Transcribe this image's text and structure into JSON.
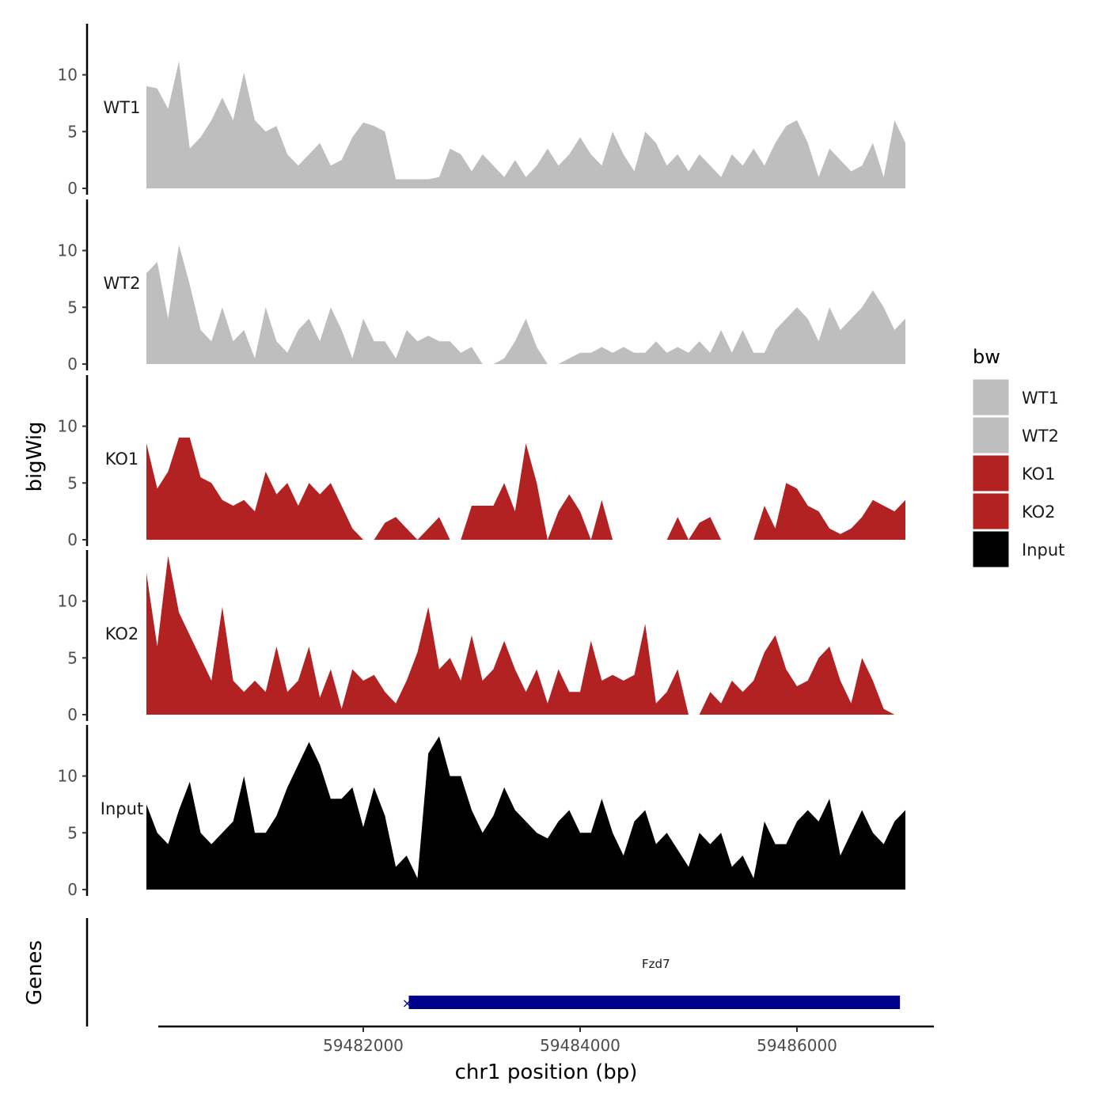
{
  "chart_data": {
    "type": "area",
    "ylabel": "bigWig",
    "xlabel": "chr1 position (bp)",
    "xlim": [
      59480000,
      59487200
    ],
    "ylim": [
      0,
      14.5
    ],
    "y_ticks": [
      "0",
      "5",
      "10"
    ],
    "x_ticks": [
      59482000,
      59484000,
      59486000
    ],
    "x_tick_labels": [
      "59482000",
      "59484000",
      "59486000"
    ],
    "tracks": [
      {
        "name": "WT1",
        "label": "WT1",
        "color": "#BEBEBE",
        "x": [
          59480000,
          59480100,
          59480200,
          59480300,
          59480400,
          59480500,
          59480600,
          59480700,
          59480800,
          59480900,
          59481000,
          59481100,
          59481200,
          59481300,
          59481400,
          59481500,
          59481600,
          59481700,
          59481800,
          59481900,
          59482000,
          59482100,
          59482200,
          59482300,
          59482400,
          59482500,
          59482600,
          59482700,
          59482800,
          59482900,
          59483000,
          59483100,
          59483200,
          59483300,
          59483400,
          59483500,
          59483600,
          59483700,
          59483800,
          59483900,
          59484000,
          59484100,
          59484200,
          59484300,
          59484400,
          59484500,
          59484600,
          59484700,
          59484800,
          59484900,
          59485000,
          59485100,
          59485200,
          59485300,
          59485400,
          59485500,
          59485600,
          59485700,
          59485800,
          59485900,
          59486000,
          59486100,
          59486200,
          59486300,
          59486400,
          59486500,
          59486600,
          59486700,
          59486800,
          59486900,
          59487000
        ],
        "y": [
          9,
          8.8,
          7,
          11.2,
          3.5,
          4.5,
          6,
          8,
          6,
          10.2,
          6,
          5,
          5.5,
          3,
          2,
          3,
          4,
          2,
          2.5,
          4.5,
          5.8,
          5.5,
          5,
          0.8,
          0.8,
          0.8,
          0.8,
          1,
          3.5,
          3,
          1.5,
          3,
          2,
          1,
          2.5,
          1,
          2,
          3.5,
          2,
          3,
          4.5,
          3,
          2,
          5,
          3,
          1.5,
          5,
          4,
          2,
          3,
          1.5,
          3,
          2,
          1,
          3,
          2,
          3.5,
          2,
          4,
          5.5,
          6,
          4,
          1,
          3.5,
          2.5,
          1.5,
          2,
          4,
          1,
          6,
          4
        ]
      },
      {
        "name": "WT2",
        "label": "WT2",
        "color": "#BEBEBE",
        "x": [
          59480000,
          59480100,
          59480200,
          59480300,
          59480400,
          59480500,
          59480600,
          59480700,
          59480800,
          59480900,
          59481000,
          59481100,
          59481200,
          59481300,
          59481400,
          59481500,
          59481600,
          59481700,
          59481800,
          59481900,
          59482000,
          59482100,
          59482200,
          59482300,
          59482400,
          59482500,
          59482600,
          59482700,
          59482800,
          59482900,
          59483000,
          59483100,
          59483200,
          59483300,
          59483400,
          59483500,
          59483600,
          59483700,
          59483800,
          59483900,
          59484000,
          59484100,
          59484200,
          59484300,
          59484400,
          59484500,
          59484600,
          59484700,
          59484800,
          59484900,
          59485000,
          59485100,
          59485200,
          59485300,
          59485400,
          59485500,
          59485600,
          59485700,
          59485800,
          59485900,
          59486000,
          59486100,
          59486200,
          59486300,
          59486400,
          59486500,
          59486600,
          59486700,
          59486800,
          59486900,
          59487000
        ],
        "y": [
          8,
          9,
          4,
          10.5,
          7,
          3,
          2,
          5,
          2,
          3,
          0.5,
          5,
          2,
          1,
          3,
          4,
          2,
          5,
          3,
          0.5,
          4,
          2,
          2,
          0.5,
          3,
          2,
          2.5,
          2,
          2,
          1,
          1.5,
          0,
          0,
          0.5,
          2,
          4,
          1.5,
          0,
          0,
          0.5,
          1,
          1,
          1.5,
          1,
          1.5,
          1,
          1,
          2,
          1,
          1.5,
          1,
          2,
          1,
          3,
          1,
          3,
          1,
          1,
          3,
          4,
          5,
          4,
          2,
          5,
          3,
          4,
          5,
          6.5,
          5,
          3,
          4
        ]
      },
      {
        "name": "KO1",
        "label": "KO1",
        "color": "#B22222",
        "x": [
          59480000,
          59480100,
          59480200,
          59480300,
          59480400,
          59480500,
          59480600,
          59480700,
          59480800,
          59480900,
          59481000,
          59481100,
          59481200,
          59481300,
          59481400,
          59481500,
          59481600,
          59481700,
          59481800,
          59481900,
          59482000,
          59482100,
          59482200,
          59482300,
          59482400,
          59482500,
          59482600,
          59482700,
          59482800,
          59482900,
          59483000,
          59483100,
          59483200,
          59483300,
          59483400,
          59483500,
          59483600,
          59483700,
          59483800,
          59483900,
          59484000,
          59484100,
          59484200,
          59484300,
          59484400,
          59484500,
          59484600,
          59484700,
          59484800,
          59484900,
          59485000,
          59485100,
          59485200,
          59485300,
          59485400,
          59485500,
          59485600,
          59485700,
          59485800,
          59485900,
          59486000,
          59486100,
          59486200,
          59486300,
          59486400,
          59486500,
          59486600,
          59486700,
          59486800,
          59486900,
          59487000
        ],
        "y": [
          8.5,
          4.5,
          6,
          9,
          9,
          5.5,
          5,
          3.5,
          3,
          3.5,
          2.5,
          6,
          4,
          5,
          3,
          5,
          4,
          5,
          3,
          1,
          0,
          0,
          1.5,
          2,
          1,
          0,
          1,
          2,
          0,
          0,
          3,
          3,
          3,
          5,
          2.5,
          8.5,
          5,
          0,
          2.5,
          4,
          2.5,
          0,
          3.5,
          0,
          0,
          0,
          0,
          0,
          0,
          2,
          0,
          1.5,
          2,
          0,
          0,
          0,
          0,
          3,
          1,
          5,
          4.5,
          3,
          2.5,
          1,
          0.5,
          1,
          2,
          3.5,
          3,
          2.5,
          3.5
        ]
      },
      {
        "name": "KO2",
        "label": "KO2",
        "color": "#B22222",
        "x": [
          59480000,
          59480100,
          59480200,
          59480300,
          59480400,
          59480500,
          59480600,
          59480700,
          59480800,
          59480900,
          59481000,
          59481100,
          59481200,
          59481300,
          59481400,
          59481500,
          59481600,
          59481700,
          59481800,
          59481900,
          59482000,
          59482100,
          59482200,
          59482300,
          59482400,
          59482500,
          59482600,
          59482700,
          59482800,
          59482900,
          59483000,
          59483100,
          59483200,
          59483300,
          59483400,
          59483500,
          59483600,
          59483700,
          59483800,
          59483900,
          59484000,
          59484100,
          59484200,
          59484300,
          59484400,
          59484500,
          59484600,
          59484700,
          59484800,
          59484900,
          59485000,
          59485100,
          59485200,
          59485300,
          59485400,
          59485500,
          59485600,
          59485700,
          59485800,
          59485900,
          59486000,
          59486100,
          59486200,
          59486300,
          59486400,
          59486500,
          59486600,
          59486700,
          59486800,
          59486900,
          59487000
        ],
        "y": [
          12.5,
          6,
          14,
          9,
          7,
          5,
          3,
          9.5,
          3,
          2,
          3,
          2,
          6,
          2,
          3,
          6,
          1.5,
          4,
          0.5,
          4,
          3,
          3.5,
          2,
          1,
          3,
          5.5,
          9.5,
          4,
          5,
          3,
          7,
          3,
          4,
          6.5,
          4,
          2,
          4,
          1,
          4,
          2,
          2,
          6.5,
          3,
          3.5,
          3,
          3.5,
          8,
          1,
          2,
          4,
          0,
          0,
          2,
          1,
          3,
          2,
          3,
          5.5,
          7,
          4,
          2.5,
          3,
          5,
          6,
          3,
          1,
          5,
          3,
          0.5,
          0,
          0
        ]
      },
      {
        "name": "Input",
        "label": "Input",
        "color": "#000000",
        "x": [
          59480000,
          59480100,
          59480200,
          59480300,
          59480400,
          59480500,
          59480600,
          59480700,
          59480800,
          59480900,
          59481000,
          59481100,
          59481200,
          59481300,
          59481400,
          59481500,
          59481600,
          59481700,
          59481800,
          59481900,
          59482000,
          59482100,
          59482200,
          59482300,
          59482400,
          59482500,
          59482600,
          59482700,
          59482800,
          59482900,
          59483000,
          59483100,
          59483200,
          59483300,
          59483400,
          59483500,
          59483600,
          59483700,
          59483800,
          59483900,
          59484000,
          59484100,
          59484200,
          59484300,
          59484400,
          59484500,
          59484600,
          59484700,
          59484800,
          59484900,
          59485000,
          59485100,
          59485200,
          59485300,
          59485400,
          59485500,
          59485600,
          59485700,
          59485800,
          59485900,
          59486000,
          59486100,
          59486200,
          59486300,
          59486400,
          59486500,
          59486600,
          59486700,
          59486800,
          59486900,
          59487000
        ],
        "y": [
          7.5,
          5,
          4,
          7,
          9.5,
          5,
          4,
          5,
          6,
          10,
          5,
          5,
          6.5,
          9,
          11,
          13,
          11,
          8,
          8,
          9,
          5.5,
          9,
          6.5,
          2,
          3,
          1,
          12,
          13.5,
          10,
          10,
          7,
          5,
          6.5,
          9,
          7,
          6,
          5,
          4.5,
          6,
          7,
          5,
          5,
          8,
          5,
          3,
          6,
          7,
          4,
          5,
          3.5,
          2,
          5,
          4,
          5,
          2,
          3,
          1,
          6,
          4,
          4,
          6,
          7,
          6,
          8,
          3,
          5,
          7,
          5,
          4,
          6,
          7
        ]
      }
    ],
    "genes_track": {
      "label": "Genes",
      "gene_name": "Fzd7",
      "start": 59482420,
      "end": 59486950,
      "strand_marker": "×",
      "color": "#00008B"
    },
    "legend": {
      "title": "bw",
      "position": "right",
      "items": [
        {
          "label": "WT1",
          "color": "#BEBEBE"
        },
        {
          "label": "WT2",
          "color": "#BEBEBE"
        },
        {
          "label": "KO1",
          "color": "#B22222"
        },
        {
          "label": "KO2",
          "color": "#B22222"
        },
        {
          "label": "Input",
          "color": "#000000"
        }
      ]
    }
  }
}
